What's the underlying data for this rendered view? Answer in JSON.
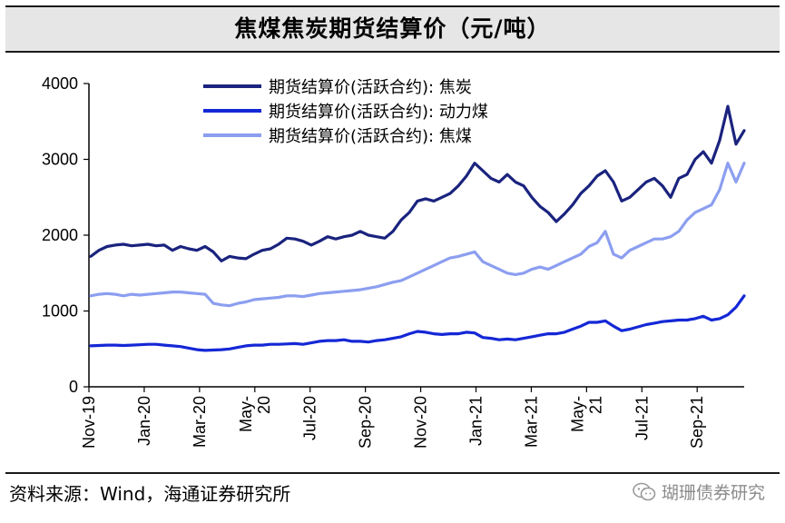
{
  "header": {
    "title": "焦煤焦炭期货结算价（元/吨）"
  },
  "footer": {
    "source": "资料来源：Wind，海通证券研究所",
    "watermark": "瑚珊债券研究"
  },
  "chart_data": {
    "type": "line",
    "title": "焦煤焦炭期货结算价（元/吨）",
    "ylim": [
      0,
      4000
    ],
    "yticks": [
      "0",
      "1000",
      "2000",
      "3000",
      "4000"
    ],
    "xticks": [
      "Nov-19",
      "Jan-20",
      "Mar-20",
      "May-\n20",
      "Jul-20",
      "Sep-20",
      "Nov-20",
      "Jan-21",
      "Mar-21",
      "May-\n21",
      "Jul-21",
      "Sep-21"
    ],
    "legend_position": "top-center",
    "grid": false,
    "series": [
      {
        "name": "期货结算价(活跃合约): 焦炭",
        "color": "#1a237e",
        "values": [
          1720,
          1800,
          1850,
          1870,
          1880,
          1860,
          1870,
          1880,
          1860,
          1870,
          1800,
          1850,
          1820,
          1800,
          1850,
          1780,
          1660,
          1720,
          1700,
          1690,
          1750,
          1800,
          1820,
          1880,
          1960,
          1950,
          1920,
          1870,
          1920,
          1980,
          1950,
          1980,
          2000,
          2050,
          2000,
          1980,
          1960,
          2050,
          2200,
          2300,
          2450,
          2480,
          2450,
          2500,
          2550,
          2650,
          2780,
          2950,
          2850,
          2750,
          2700,
          2800,
          2700,
          2650,
          2500,
          2380,
          2300,
          2180,
          2280,
          2400,
          2550,
          2650,
          2780,
          2850,
          2700,
          2450,
          2500,
          2600,
          2700,
          2750,
          2650,
          2500,
          2750,
          2800,
          3000,
          3100,
          2950,
          3250,
          3700,
          3200,
          3380
        ]
      },
      {
        "name": "期货结算价(活跃合约): 动力煤",
        "color": "#1428d6",
        "values": [
          540,
          545,
          550,
          550,
          545,
          550,
          555,
          560,
          560,
          550,
          540,
          530,
          510,
          490,
          480,
          485,
          490,
          500,
          520,
          540,
          550,
          550,
          560,
          560,
          565,
          570,
          560,
          580,
          600,
          610,
          610,
          620,
          600,
          600,
          590,
          610,
          620,
          640,
          660,
          700,
          730,
          720,
          700,
          690,
          700,
          700,
          720,
          710,
          650,
          640,
          620,
          630,
          620,
          640,
          660,
          680,
          700,
          700,
          720,
          760,
          800,
          850,
          850,
          870,
          800,
          740,
          760,
          790,
          820,
          840,
          860,
          870,
          880,
          880,
          900,
          930,
          880,
          900,
          950,
          1050,
          1200
        ]
      },
      {
        "name": "期货结算价(活跃合约): 焦煤",
        "color": "#8c9ef0",
        "values": [
          1200,
          1220,
          1230,
          1220,
          1200,
          1220,
          1210,
          1220,
          1230,
          1240,
          1250,
          1250,
          1240,
          1230,
          1220,
          1100,
          1080,
          1070,
          1100,
          1120,
          1150,
          1160,
          1170,
          1180,
          1200,
          1200,
          1190,
          1210,
          1230,
          1240,
          1250,
          1260,
          1270,
          1280,
          1300,
          1320,
          1350,
          1380,
          1400,
          1450,
          1500,
          1550,
          1600,
          1650,
          1700,
          1720,
          1750,
          1780,
          1650,
          1600,
          1550,
          1500,
          1480,
          1500,
          1550,
          1580,
          1550,
          1600,
          1650,
          1700,
          1750,
          1850,
          1900,
          2050,
          1750,
          1700,
          1800,
          1850,
          1900,
          1950,
          1950,
          1980,
          2050,
          2200,
          2300,
          2350,
          2400,
          2600,
          2950,
          2700,
          2950
        ]
      }
    ]
  }
}
